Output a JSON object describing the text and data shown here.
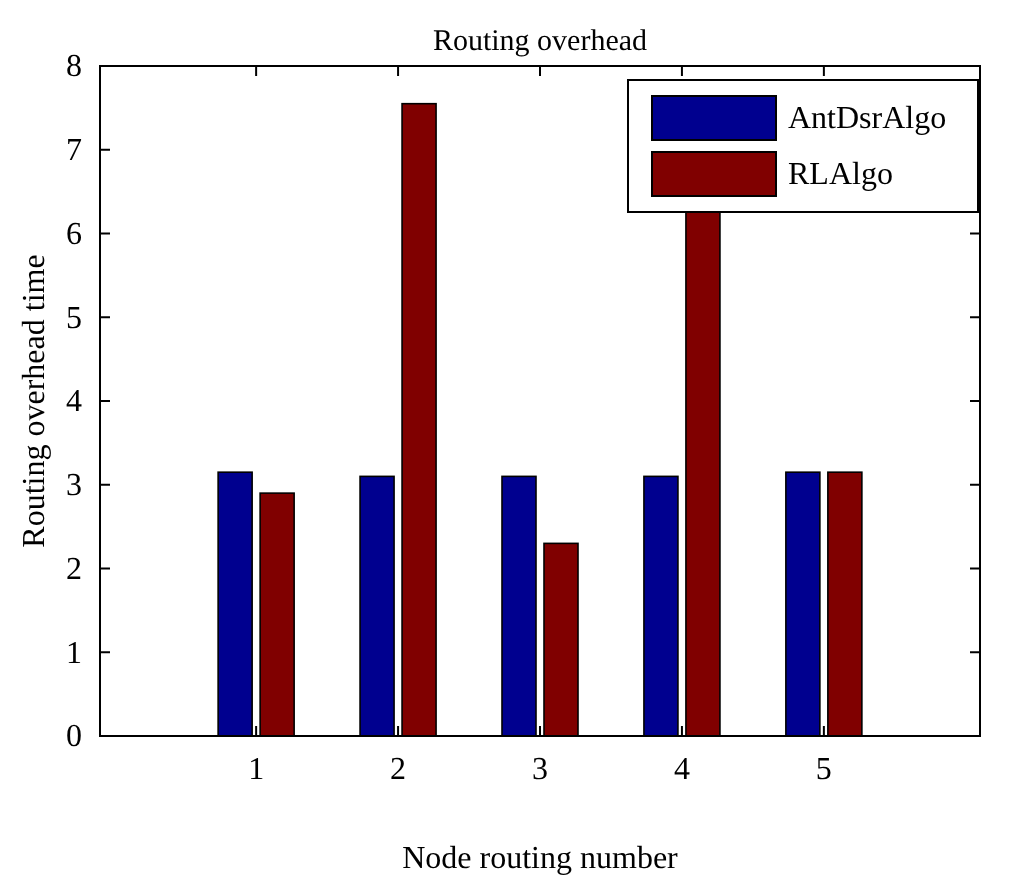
{
  "chart_data": {
    "type": "bar",
    "title": "Routing overhead",
    "xlabel": "Node routing number",
    "ylabel": "Routing overhead time",
    "categories": [
      "1",
      "2",
      "3",
      "4",
      "5"
    ],
    "series": [
      {
        "name": "AntDsrAlgo",
        "color": "#00008f",
        "values": [
          3.15,
          3.1,
          3.1,
          3.1,
          3.15
        ]
      },
      {
        "name": "RLAlgo",
        "color": "#800000",
        "values": [
          2.9,
          7.55,
          2.3,
          6.3,
          3.15
        ]
      }
    ],
    "ylim": [
      0,
      8
    ],
    "yticks": [
      0,
      1,
      2,
      3,
      4,
      5,
      6,
      7,
      8
    ],
    "grid": false,
    "legend": "top right"
  }
}
